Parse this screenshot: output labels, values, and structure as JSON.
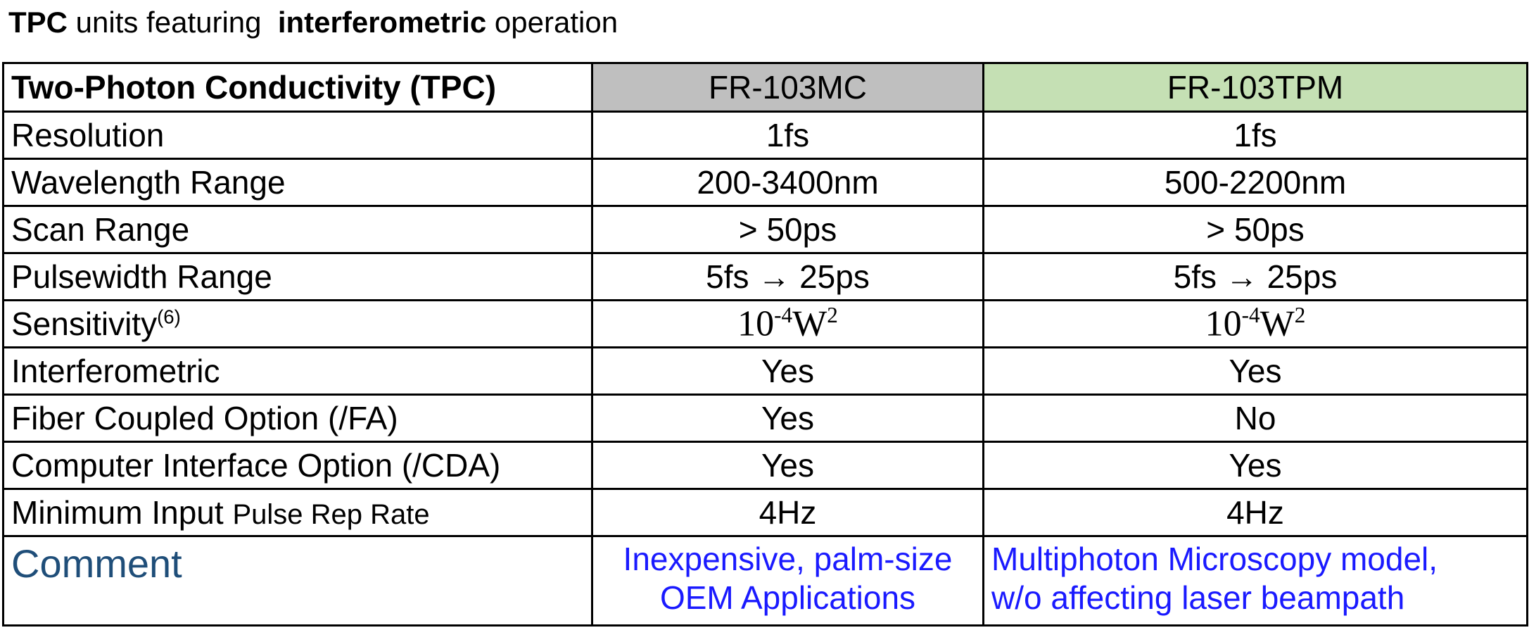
{
  "title": {
    "parts": [
      "TPC",
      " units featuring  ",
      "interferometric",
      " operation"
    ]
  },
  "table": {
    "header": [
      "Two-Photon Conductivity (TPC)",
      "FR-103MC",
      "FR-103TPM"
    ],
    "rows": [
      [
        "Resolution",
        "1fs",
        "1fs"
      ],
      [
        "Wavelength Range",
        "200-3400nm",
        "500-2200nm"
      ],
      [
        "Scan Range",
        "> 50ps",
        "> 50ps"
      ],
      [
        "Pulsewidth Range",
        "5fs → 25ps",
        "5fs → 25ps"
      ]
    ],
    "sensitivity": {
      "label": "Sensitivity",
      "note": "(6)",
      "values": [
        {
          "base": "10",
          "exp": "-4",
          "unit": "W",
          "unit_exp": "2"
        },
        {
          "base": "10",
          "exp": "-4",
          "unit": "W",
          "unit_exp": "2"
        }
      ]
    },
    "rows2": [
      [
        "Interferometric",
        "Yes",
        "Yes"
      ],
      [
        "Fiber Coupled Option (/FA)",
        "Yes",
        "No"
      ],
      [
        "Computer Interface Option  (/CDA)",
        "Yes",
        "Yes"
      ]
    ],
    "min_rate": {
      "label": [
        "Minimum Input ",
        "Pulse Rep Rate"
      ],
      "values": [
        "4Hz",
        "4Hz"
      ]
    },
    "comment": {
      "label": "Comment",
      "values": [
        [
          "Inexpensive, palm-size",
          "OEM Applications"
        ],
        [
          "Multiphoton Microscopy model,",
          "w/o affecting laser beampath"
        ]
      ]
    }
  }
}
